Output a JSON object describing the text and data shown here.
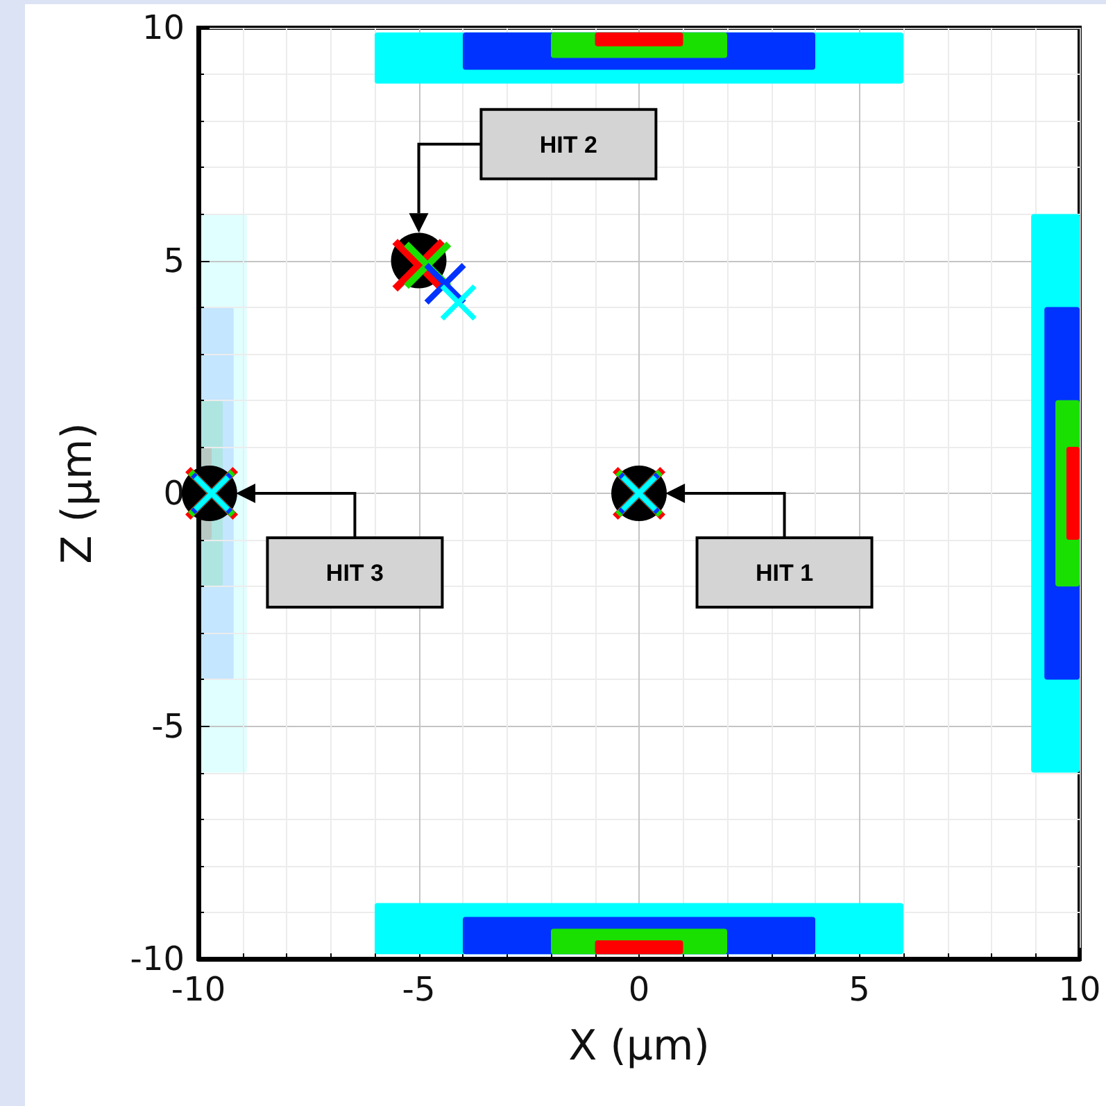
{
  "chart_data": {
    "type": "scatter",
    "xlabel": "X (µm)",
    "ylabel": "Z (µm)",
    "xlim": [
      -10,
      10
    ],
    "ylim": [
      -10,
      10
    ],
    "xticks": [
      -10,
      -5,
      0,
      5,
      10
    ],
    "yticks": [
      -10,
      -5,
      0,
      5,
      10
    ],
    "grid": true,
    "annotations": [
      "HIT 1",
      "HIT 2",
      "HIT 3"
    ],
    "series": [
      {
        "marker": "circle",
        "color": "#000000",
        "x": [
          0,
          -5,
          -9.75
        ],
        "values": [
          0,
          5,
          0
        ]
      },
      {
        "marker": "cross",
        "color": "#ff0000",
        "x": [
          0,
          -5,
          -9.7
        ],
        "values": [
          0,
          4.9,
          0
        ]
      },
      {
        "marker": "cross",
        "color": "#19e000",
        "x": [
          0,
          -4.8,
          -9.7
        ],
        "values": [
          0,
          4.9,
          0
        ]
      },
      {
        "marker": "cross",
        "color": "#0033ff",
        "x": [
          0,
          -4.4,
          -9.7
        ],
        "values": [
          0,
          4.5,
          0
        ]
      },
      {
        "marker": "cross",
        "color": "#00ffff",
        "x": [
          0,
          -4.1,
          -9.7
        ],
        "values": [
          0,
          4.1,
          0
        ]
      }
    ]
  }
}
